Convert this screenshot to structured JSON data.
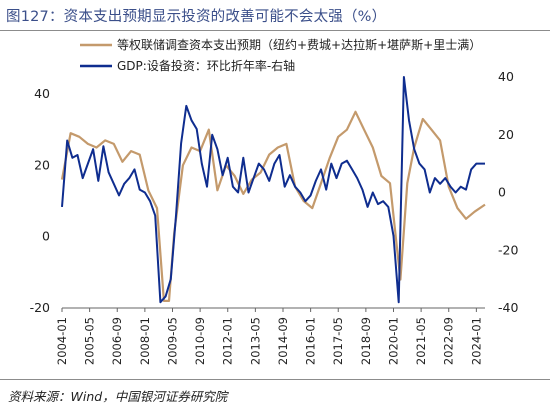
{
  "title": "图127：资本支出预期显示投资的改善可能不会太强（%）",
  "source": "资料来源：Wind，中国银河证券研究院",
  "chart_data": {
    "type": "line",
    "x_ticks": [
      "2004-01",
      "2005-05",
      "2006-09",
      "2008-01",
      "2009-05",
      "2010-09",
      "2012-01",
      "2013-05",
      "2014-09",
      "2016-01",
      "2017-05",
      "2018-09",
      "2020-01",
      "2021-05",
      "2022-09",
      "2024-01"
    ],
    "x_range": [
      "2004-01",
      "2024-06"
    ],
    "y_left": {
      "ticks": [
        "40",
        "20",
        "0",
        "-20"
      ],
      "range": [
        -20,
        42
      ]
    },
    "y_right": {
      "ticks": [
        "40",
        "20",
        "0",
        "-20",
        "-40"
      ],
      "range": [
        -40,
        40
      ]
    },
    "legend_position": "top",
    "series": [
      {
        "name": "等权联储调查资本支出预期（纽约+费城+达拉斯+堪萨斯+里士满）",
        "axis": "left",
        "color": "#c49a6c",
        "points": [
          [
            "2004-01",
            16
          ],
          [
            "2004-06",
            29
          ],
          [
            "2004-11",
            28
          ],
          [
            "2005-04",
            26
          ],
          [
            "2005-09",
            25
          ],
          [
            "2006-02",
            27
          ],
          [
            "2006-07",
            26
          ],
          [
            "2006-12",
            21
          ],
          [
            "2007-05",
            24
          ],
          [
            "2007-10",
            23
          ],
          [
            "2008-03",
            13
          ],
          [
            "2008-08",
            8
          ],
          [
            "2008-12",
            -18
          ],
          [
            "2009-03",
            -18
          ],
          [
            "2009-06",
            1
          ],
          [
            "2009-11",
            20
          ],
          [
            "2010-04",
            25
          ],
          [
            "2010-09",
            24
          ],
          [
            "2011-02",
            30
          ],
          [
            "2011-07",
            13
          ],
          [
            "2011-12",
            20
          ],
          [
            "2012-05",
            17
          ],
          [
            "2012-10",
            12
          ],
          [
            "2013-03",
            16
          ],
          [
            "2013-08",
            18
          ],
          [
            "2014-01",
            23
          ],
          [
            "2014-06",
            25
          ],
          [
            "2014-11",
            26
          ],
          [
            "2015-04",
            14
          ],
          [
            "2015-09",
            10
          ],
          [
            "2016-02",
            8
          ],
          [
            "2016-07",
            15
          ],
          [
            "2016-12",
            22
          ],
          [
            "2017-05",
            28
          ],
          [
            "2017-10",
            30
          ],
          [
            "2018-03",
            35
          ],
          [
            "2018-08",
            30
          ],
          [
            "2019-01",
            25
          ],
          [
            "2019-06",
            17
          ],
          [
            "2019-11",
            15
          ],
          [
            "2020-03",
            -3
          ],
          [
            "2020-05",
            -12
          ],
          [
            "2020-09",
            15
          ],
          [
            "2021-01",
            25
          ],
          [
            "2021-06",
            33
          ],
          [
            "2021-11",
            30
          ],
          [
            "2022-04",
            27
          ],
          [
            "2022-09",
            14
          ],
          [
            "2023-02",
            8
          ],
          [
            "2023-07",
            5
          ],
          [
            "2023-12",
            7
          ],
          [
            "2024-06",
            9
          ]
        ]
      },
      {
        "name": "GDP:设备投资：环比折年率-右轴",
        "axis": "right",
        "color": "#0f2d8f",
        "points": [
          [
            "2004-01",
            -5
          ],
          [
            "2004-04",
            18
          ],
          [
            "2004-07",
            12
          ],
          [
            "2004-10",
            13
          ],
          [
            "2005-01",
            5
          ],
          [
            "2005-04",
            10
          ],
          [
            "2005-07",
            15
          ],
          [
            "2005-10",
            4
          ],
          [
            "2006-01",
            16
          ],
          [
            "2006-04",
            7
          ],
          [
            "2006-07",
            3
          ],
          [
            "2006-10",
            -1
          ],
          [
            "2007-01",
            3
          ],
          [
            "2007-04",
            5
          ],
          [
            "2007-07",
            8
          ],
          [
            "2007-10",
            1
          ],
          [
            "2008-01",
            0
          ],
          [
            "2008-04",
            -3
          ],
          [
            "2008-07",
            -8
          ],
          [
            "2008-10",
            -38
          ],
          [
            "2009-01",
            -36
          ],
          [
            "2009-04",
            -30
          ],
          [
            "2009-07",
            -8
          ],
          [
            "2009-10",
            17
          ],
          [
            "2010-01",
            30
          ],
          [
            "2010-04",
            25
          ],
          [
            "2010-07",
            22
          ],
          [
            "2010-10",
            10
          ],
          [
            "2011-01",
            2
          ],
          [
            "2011-04",
            20
          ],
          [
            "2011-07",
            15
          ],
          [
            "2011-10",
            6
          ],
          [
            "2012-01",
            12
          ],
          [
            "2012-04",
            2
          ],
          [
            "2012-07",
            0
          ],
          [
            "2012-10",
            12
          ],
          [
            "2013-01",
            0
          ],
          [
            "2013-04",
            5
          ],
          [
            "2013-07",
            10
          ],
          [
            "2013-10",
            8
          ],
          [
            "2014-01",
            4
          ],
          [
            "2014-04",
            10
          ],
          [
            "2014-07",
            13
          ],
          [
            "2014-10",
            2
          ],
          [
            "2015-01",
            6
          ],
          [
            "2015-04",
            2
          ],
          [
            "2015-07",
            0
          ],
          [
            "2015-10",
            -3
          ],
          [
            "2016-01",
            -1
          ],
          [
            "2016-04",
            4
          ],
          [
            "2016-07",
            8
          ],
          [
            "2016-10",
            1
          ],
          [
            "2017-01",
            10
          ],
          [
            "2017-04",
            5
          ],
          [
            "2017-07",
            10
          ],
          [
            "2017-10",
            11
          ],
          [
            "2018-01",
            8
          ],
          [
            "2018-04",
            5
          ],
          [
            "2018-07",
            1
          ],
          [
            "2018-10",
            -5
          ],
          [
            "2019-01",
            0
          ],
          [
            "2019-04",
            -4
          ],
          [
            "2019-07",
            -3
          ],
          [
            "2019-10",
            -5
          ],
          [
            "2020-01",
            -15
          ],
          [
            "2020-04",
            -38
          ],
          [
            "2020-07",
            40
          ],
          [
            "2020-10",
            25
          ],
          [
            "2021-01",
            15
          ],
          [
            "2021-04",
            10
          ],
          [
            "2021-07",
            8
          ],
          [
            "2021-10",
            0
          ],
          [
            "2022-01",
            5
          ],
          [
            "2022-04",
            3
          ],
          [
            "2022-07",
            5
          ],
          [
            "2022-10",
            2
          ],
          [
            "2023-01",
            0
          ],
          [
            "2023-04",
            2
          ],
          [
            "2023-07",
            1
          ],
          [
            "2023-10",
            8
          ],
          [
            "2024-01",
            10
          ],
          [
            "2024-04",
            10
          ],
          [
            "2024-06",
            10
          ]
        ]
      }
    ]
  }
}
